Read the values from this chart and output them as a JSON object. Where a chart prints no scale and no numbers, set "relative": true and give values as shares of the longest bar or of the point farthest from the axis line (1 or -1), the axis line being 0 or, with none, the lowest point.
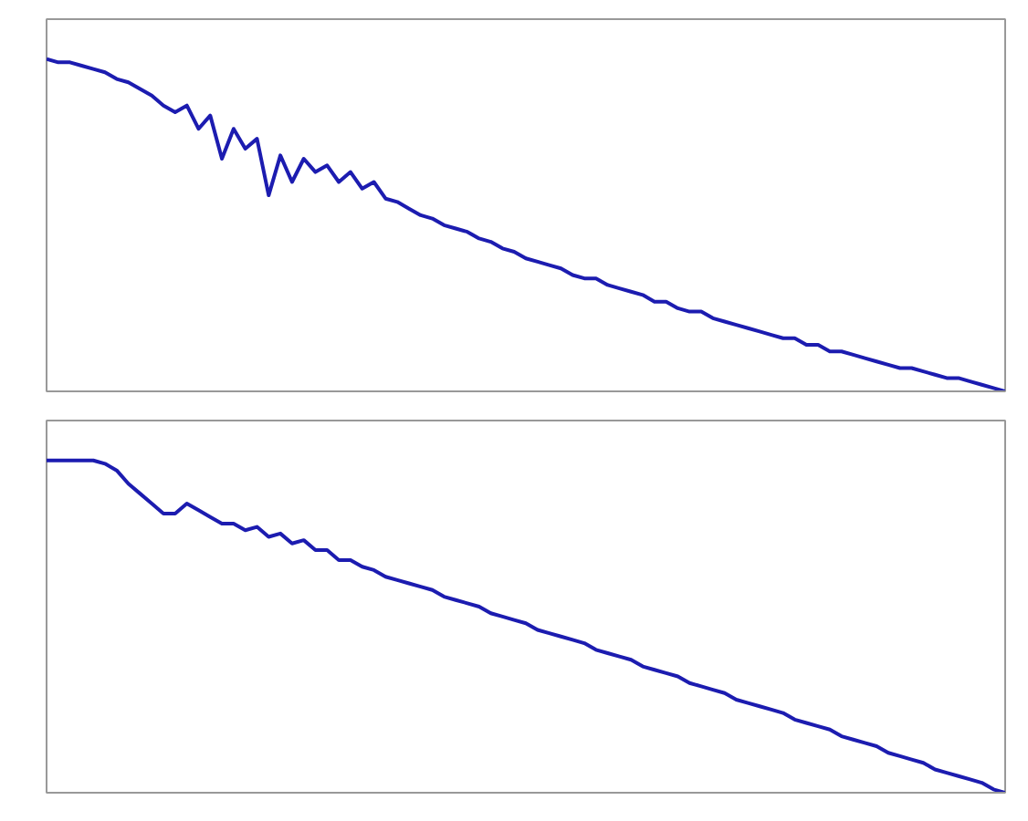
{
  "chart_data": [
    {
      "type": "line",
      "relative": true,
      "categories": [
        null,
        null,
        null,
        null,
        null,
        null,
        null,
        null,
        null,
        null,
        null,
        null,
        null,
        null,
        null,
        null,
        null,
        null,
        null,
        null,
        null,
        null,
        null,
        null,
        null,
        null,
        null,
        null,
        null,
        null,
        null,
        null,
        null,
        null,
        null,
        null,
        null,
        null,
        null,
        null,
        null,
        null,
        null,
        null,
        null,
        null,
        null,
        null,
        null,
        null,
        null,
        null,
        null,
        null,
        null,
        null,
        null,
        null,
        null,
        null,
        null,
        null,
        null,
        null,
        null,
        null,
        null,
        null,
        null,
        null,
        null,
        null,
        null,
        null,
        null,
        null,
        null,
        null,
        null,
        null,
        null,
        null,
        null
      ],
      "series": [
        {
          "color": "#1c1cb0",
          "values": [
            1.0,
            0.99,
            0.99,
            0.98,
            0.97,
            0.96,
            0.94,
            0.93,
            0.91,
            0.89,
            0.86,
            0.84,
            0.86,
            0.79,
            0.83,
            0.7,
            0.79,
            0.73,
            0.76,
            0.59,
            0.71,
            0.63,
            0.7,
            0.66,
            0.68,
            0.63,
            0.66,
            0.61,
            0.63,
            0.58,
            0.57,
            0.55,
            0.53,
            0.52,
            0.5,
            0.49,
            0.48,
            0.46,
            0.45,
            0.43,
            0.42,
            0.4,
            0.39,
            0.38,
            0.37,
            0.35,
            0.34,
            0.34,
            0.32,
            0.31,
            0.3,
            0.29,
            0.27,
            0.27,
            0.25,
            0.24,
            0.24,
            0.22,
            0.21,
            0.2,
            0.19,
            0.18,
            0.17,
            0.16,
            0.16,
            0.14,
            0.14,
            0.12,
            0.12,
            0.11,
            0.1,
            0.09,
            0.08,
            0.07,
            0.07,
            0.06,
            0.05,
            0.04,
            0.04,
            0.03,
            0.02,
            0.01,
            0.0
          ]
        }
      ]
    },
    {
      "type": "line",
      "relative": true,
      "categories": [
        null,
        null,
        null,
        null,
        null,
        null,
        null,
        null,
        null,
        null,
        null,
        null,
        null,
        null,
        null,
        null,
        null,
        null,
        null,
        null,
        null,
        null,
        null,
        null,
        null,
        null,
        null,
        null,
        null,
        null,
        null,
        null,
        null,
        null,
        null,
        null,
        null,
        null,
        null,
        null,
        null,
        null,
        null,
        null,
        null,
        null,
        null,
        null,
        null,
        null,
        null,
        null,
        null,
        null,
        null,
        null,
        null,
        null,
        null,
        null,
        null,
        null,
        null,
        null,
        null,
        null,
        null,
        null,
        null,
        null,
        null,
        null,
        null,
        null,
        null,
        null,
        null,
        null,
        null,
        null,
        null,
        null,
        null
      ],
      "series": [
        {
          "color": "#1c1cb0",
          "values": [
            1.0,
            1.0,
            1.0,
            1.0,
            1.0,
            0.99,
            0.97,
            0.93,
            0.9,
            0.87,
            0.84,
            0.84,
            0.87,
            0.85,
            0.83,
            0.81,
            0.81,
            0.79,
            0.8,
            0.77,
            0.78,
            0.75,
            0.76,
            0.73,
            0.73,
            0.7,
            0.7,
            0.68,
            0.67,
            0.65,
            0.64,
            0.63,
            0.62,
            0.61,
            0.59,
            0.58,
            0.57,
            0.56,
            0.54,
            0.53,
            0.52,
            0.51,
            0.49,
            0.48,
            0.47,
            0.46,
            0.45,
            0.43,
            0.42,
            0.41,
            0.4,
            0.38,
            0.37,
            0.36,
            0.35,
            0.33,
            0.32,
            0.31,
            0.3,
            0.28,
            0.27,
            0.26,
            0.25,
            0.24,
            0.22,
            0.21,
            0.2,
            0.19,
            0.17,
            0.16,
            0.15,
            0.14,
            0.12,
            0.11,
            0.1,
            0.09,
            0.07,
            0.06,
            0.05,
            0.04,
            0.03,
            0.01,
            0.0
          ]
        }
      ]
    }
  ]
}
